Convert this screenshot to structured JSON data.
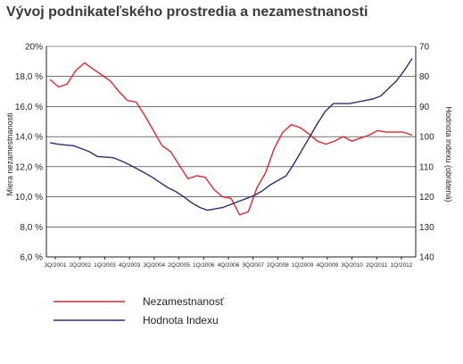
{
  "title": "Vývoj podnikateľského prostredia a nezamestnanosti",
  "chart_data": {
    "type": "line",
    "title": "Vývoj podnikateľského prostredia a nezamestnanosti",
    "ylabel": "Miera nezamestnanosti",
    "y2label": "Hodnota indexu (obrátená)",
    "ylim": [
      6,
      20
    ],
    "y2lim": [
      70,
      140
    ],
    "y2_inverted": true,
    "yticks": [
      "6,0 %",
      "8,0 %",
      "10,0 %",
      "12,0 %",
      "14,0 %",
      "16,0 %",
      "18,0 %",
      "20%"
    ],
    "y2ticks": [
      "70",
      "80",
      "90",
      "100",
      "110",
      "120",
      "130",
      "140"
    ],
    "xticks": [
      "3Q/2001",
      "2Q/2002",
      "1Q/2003",
      "4Q/2003",
      "3Q/2004",
      "2Q/2005",
      "1Q/2006",
      "4Q/2006",
      "3Q/2007",
      "2Q/2008",
      "1Q/2009",
      "4Q/2009",
      "3Q/2010",
      "2Q/2011",
      "1Q/2012"
    ],
    "legend_placement": "bottom-left",
    "grid": "horizontal",
    "series": [
      {
        "name": "Nezamestnanosť",
        "axis": "left",
        "color": "#e3262b",
        "values": [
          17.8,
          17.3,
          17.5,
          18.4,
          18.9,
          18.5,
          18.1,
          17.7,
          17.0,
          16.4,
          16.3,
          15.4,
          14.4,
          13.4,
          13.0,
          12.1,
          11.2,
          11.4,
          11.3,
          10.5,
          10.0,
          9.9,
          8.8,
          9.0,
          10.6,
          11.6,
          13.2,
          14.3,
          14.8,
          14.6,
          14.2,
          13.7,
          13.5,
          13.7,
          14.0,
          13.7,
          13.9,
          14.1,
          14.4,
          14.3,
          14.3,
          14.3,
          14.1
        ]
      },
      {
        "name": "Hodnota Indexu",
        "axis": "right",
        "color": "#2f2a7a",
        "values": [
          102,
          102.5,
          102.8,
          103,
          104,
          105,
          106.6,
          106.8,
          107,
          108,
          109.2,
          110.6,
          112,
          113.5,
          115.3,
          117,
          118.3,
          120,
          122,
          123.5,
          124.5,
          124,
          123.5,
          122.5,
          121.5,
          120.5,
          119.5,
          118,
          116,
          114.5,
          113,
          109,
          104.5,
          100,
          95.5,
          91.5,
          89,
          89,
          89,
          88.5,
          88,
          87.5,
          86.5,
          84,
          81.5,
          78,
          74
        ]
      }
    ]
  },
  "legend": {
    "items": [
      {
        "label": "Nezamestnanosť",
        "color": "#e3262b"
      },
      {
        "label": "Hodnota Indexu",
        "color": "#2f2a7a"
      }
    ]
  }
}
